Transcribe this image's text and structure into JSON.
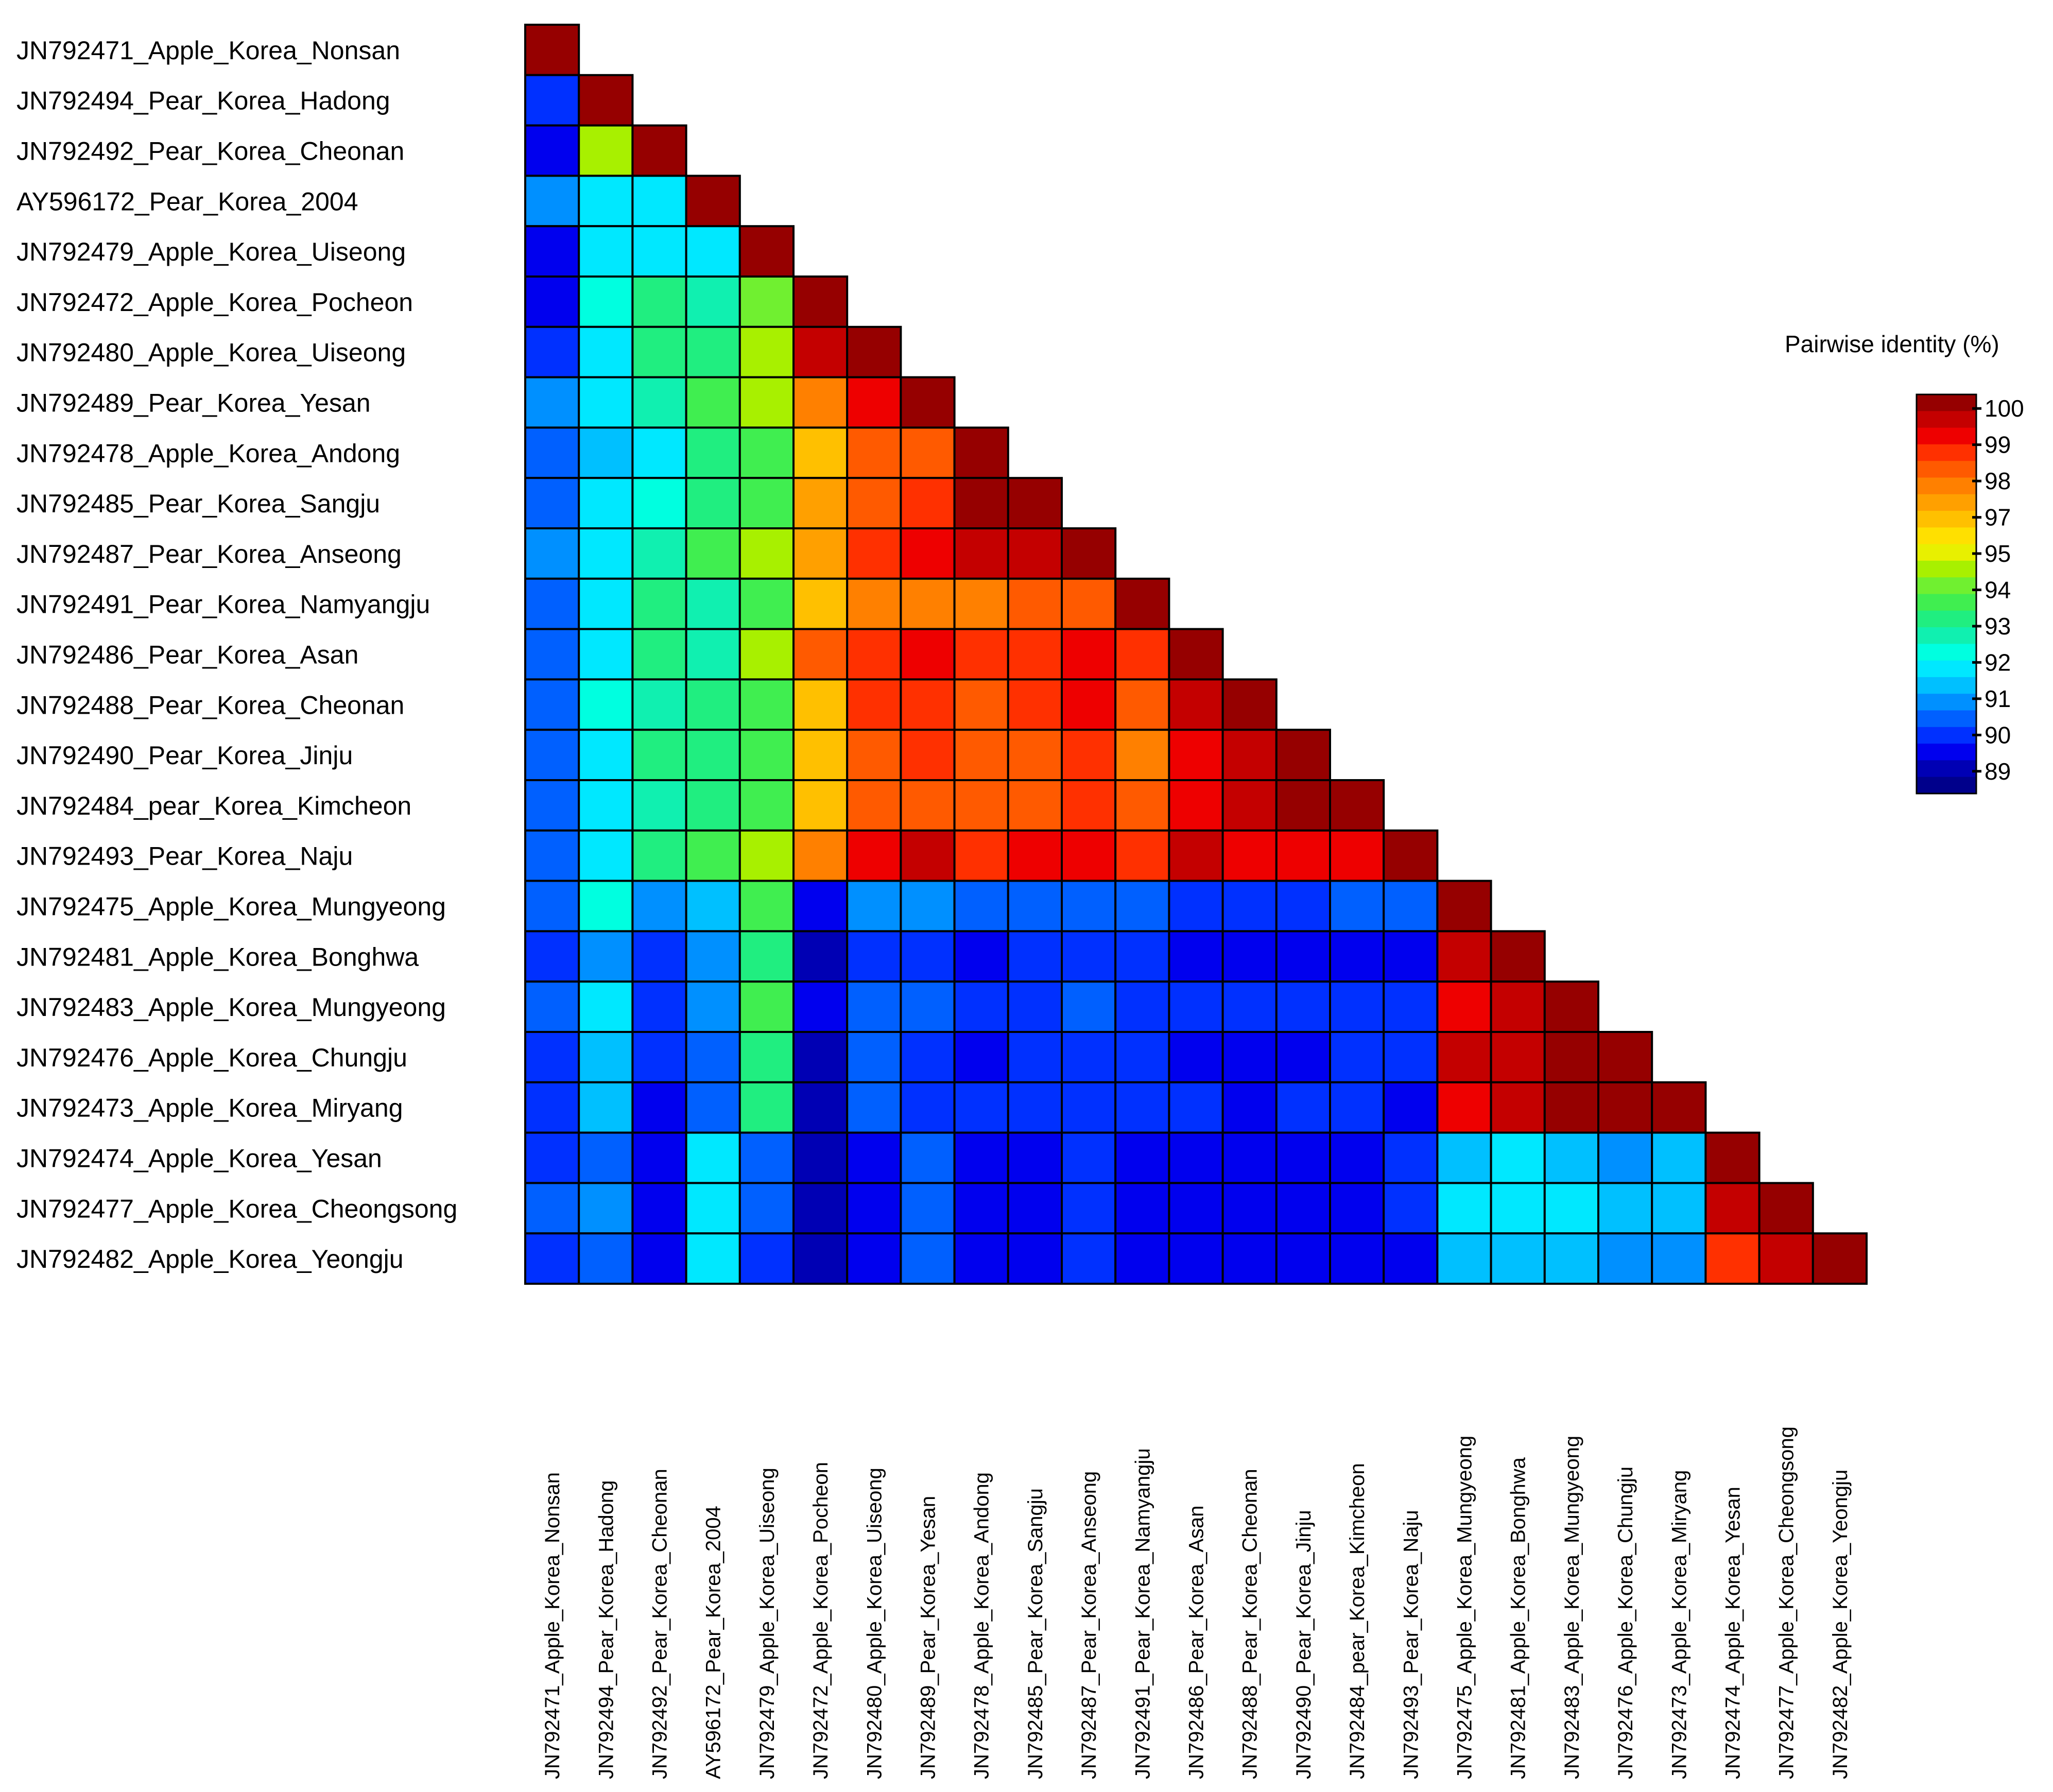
{
  "chart_data": {
    "type": "heatmap",
    "title": "",
    "layout": "lower-triangle",
    "labels": [
      "JN792471_Apple_Korea_Nonsan",
      "JN792494_Pear_Korea_Hadong",
      "JN792492_Pear_Korea_Cheonan",
      "AY596172_Pear_Korea_2004",
      "JN792479_Apple_Korea_Uiseong",
      "JN792472_Apple_Korea_Pocheon",
      "JN792480_Apple_Korea_Uiseong",
      "JN792489_Pear_Korea_Yesan",
      "JN792478_Apple_Korea_Andong",
      "JN792485_Pear_Korea_Sangju",
      "JN792487_Pear_Korea_Anseong",
      "JN792491_Pear_Korea_Namyangju",
      "JN792486_Pear_Korea_Asan",
      "JN792488_Pear_Korea_Cheonan",
      "JN792490_Pear_Korea_Jinju",
      "JN792484_pear_Korea_Kimcheon",
      "JN792493_Pear_Korea_Naju",
      "JN792475_Apple_Korea_Mungyeong",
      "JN792481_Apple_Korea_Bonghwa",
      "JN792483_Apple_Korea_Mungyeong",
      "JN792476_Apple_Korea_Chungju",
      "JN792473_Apple_Korea_Miryang",
      "JN792474_Apple_Korea_Yesan",
      "JN792477_Apple_Korea_Cheongsong",
      "JN792482_Apple_Korea_Yeongju"
    ],
    "values": [
      [
        100
      ],
      [
        90.3,
        100
      ],
      [
        89.8,
        95.1,
        100
      ],
      [
        91.2,
        92.2,
        92.1,
        100
      ],
      [
        89.9,
        92.2,
        92.3,
        92.2,
        100
      ],
      [
        89.8,
        92.4,
        93.3,
        93.1,
        94.7,
        100
      ],
      [
        90.3,
        92.3,
        93.4,
        93.5,
        95.1,
        99.2,
        100
      ],
      [
        91.1,
        92.2,
        93.2,
        94.0,
        94.8,
        97.5,
        98.8,
        100
      ],
      [
        90.6,
        91.7,
        92.1,
        93.5,
        94.2,
        96.5,
        97.7,
        97.9,
        100
      ],
      [
        90.6,
        91.9,
        92.8,
        93.7,
        94.2,
        96.7,
        97.8,
        98.2,
        99.6,
        100
      ],
      [
        90.9,
        92.2,
        93.1,
        94.0,
        94.8,
        97.1,
        98.5,
        98.6,
        99.3,
        99.5,
        100
      ],
      [
        90.6,
        91.9,
        93.3,
        92.9,
        93.9,
        96.2,
        97.3,
        97.6,
        97.5,
        97.8,
        98.0,
        100
      ],
      [
        90.6,
        92.0,
        93.4,
        92.9,
        94.8,
        97.7,
        98.3,
        98.6,
        98.1,
        98.2,
        98.9,
        98.2,
        100
      ],
      [
        90.7,
        92.4,
        93.0,
        93.4,
        94.2,
        96.6,
        98.2,
        98.4,
        97.9,
        98.1,
        98.7,
        97.8,
        99.4,
        100
      ],
      [
        90.6,
        92.3,
        93.3,
        93.3,
        94.2,
        96.6,
        98.0,
        98.1,
        97.7,
        98.0,
        98.3,
        97.6,
        99.0,
        99.5,
        100
      ],
      [
        90.6,
        92.1,
        93.2,
        93.3,
        94.2,
        96.5,
        98.0,
        98.0,
        97.8,
        98.0,
        98.5,
        97.9,
        99.0,
        99.4,
        99.8,
        100
      ],
      [
        90.6,
        92.2,
        93.6,
        94.0,
        95.0,
        97.6,
        98.6,
        99.1,
        98.4,
        98.7,
        98.9,
        98.1,
        99.1,
        99.0,
        98.7,
        98.6,
        100
      ],
      [
        90.7,
        92.4,
        90.9,
        91.4,
        94.0,
        89.7,
        91.2,
        91.0,
        90.5,
        90.6,
        90.8,
        90.6,
        90.4,
        90.3,
        90.4,
        90.5,
        90.6,
        100
      ],
      [
        90.1,
        91.3,
        90.0,
        90.9,
        93.6,
        89.2,
        90.3,
        90.2,
        89.9,
        90.0,
        90.0,
        90.0,
        89.9,
        89.8,
        89.8,
        89.9,
        89.9,
        99.1,
        100
      ],
      [
        90.6,
        92.2,
        90.3,
        91.0,
        93.8,
        89.7,
        90.8,
        90.6,
        90.4,
        90.4,
        90.5,
        90.4,
        90.3,
        90.2,
        90.3,
        90.4,
        90.4,
        99.0,
        99.2,
        100
      ],
      [
        90.0,
        91.6,
        90.0,
        90.7,
        93.7,
        89.4,
        90.5,
        90.3,
        89.9,
        90.0,
        90.2,
        90.1,
        89.9,
        89.9,
        89.9,
        90.0,
        90.0,
        99.1,
        99.2,
        99.6,
        100
      ],
      [
        90.0,
        91.5,
        89.9,
        90.7,
        93.6,
        89.4,
        90.5,
        90.3,
        90.1,
        90.0,
        90.2,
        90.1,
        90.0,
        89.9,
        90.0,
        90.0,
        89.9,
        99.0,
        99.1,
        99.6,
        99.9,
        100
      ],
      [
        90.2,
        90.7,
        89.9,
        92.2,
        90.6,
        89.3,
        89.9,
        90.6,
        89.9,
        89.8,
        90.0,
        89.8,
        89.9,
        89.7,
        89.6,
        89.7,
        90.1,
        91.8,
        92.0,
        91.5,
        91.3,
        91.6,
        100
      ],
      [
        90.6,
        90.9,
        89.9,
        92.3,
        90.7,
        89.0,
        89.8,
        90.6,
        89.9,
        89.9,
        90.0,
        89.9,
        89.9,
        89.7,
        89.7,
        89.7,
        90.2,
        92.3,
        92.2,
        92.1,
        91.6,
        91.8,
        99.2,
        100
      ],
      [
        90.1,
        90.8,
        89.8,
        92.2,
        90.0,
        89.0,
        89.5,
        90.5,
        89.9,
        89.8,
        90.0,
        89.8,
        89.8,
        89.6,
        89.6,
        89.6,
        89.9,
        91.5,
        91.4,
        91.5,
        91.0,
        91.1,
        98.1,
        99.2,
        100
      ]
    ],
    "legend_title": "Pairwise identity (%)",
    "legend_placement": "right",
    "colorbar_ticks": [
      "100",
      "99",
      "98",
      "97",
      "95",
      "94",
      "93",
      "92",
      "91",
      "90",
      "89"
    ],
    "colorbar_range": [
      88.5,
      100
    ],
    "colorbar_colors": [
      "#00008b",
      "#0000b4",
      "#0000ee",
      "#0030ff",
      "#0060ff",
      "#0090ff",
      "#00c0ff",
      "#00e8ff",
      "#00ffe0",
      "#10f0b0",
      "#20ee80",
      "#40ee50",
      "#70f030",
      "#a8f000",
      "#e8f000",
      "#ffe000",
      "#ffc000",
      "#ffa000",
      "#ff8000",
      "#ff5a00",
      "#ff3000",
      "#ee0000",
      "#c40000",
      "#960000"
    ]
  }
}
